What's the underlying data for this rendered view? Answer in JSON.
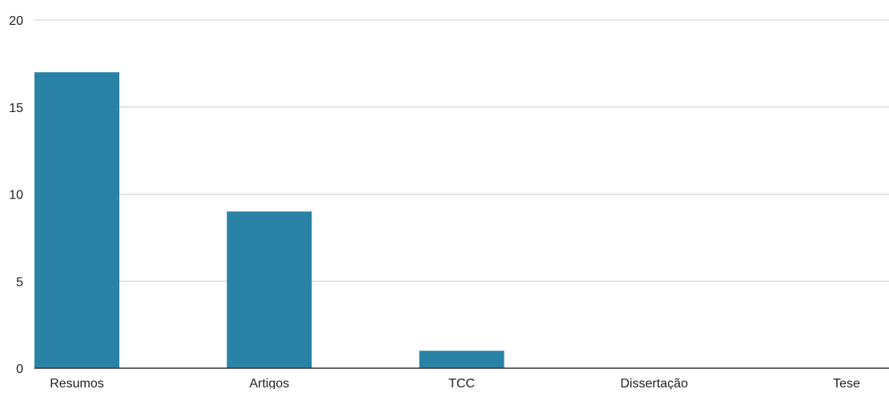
{
  "chart_data": {
    "type": "bar",
    "categories": [
      "Resumos",
      "Artigos",
      "TCC",
      "Dissertação",
      "Tese"
    ],
    "values": [
      17,
      9,
      1,
      0,
      0
    ],
    "title": "",
    "xlabel": "",
    "ylabel": "",
    "ylim": [
      0,
      20
    ],
    "yticks": [
      "0",
      "5",
      "10",
      "15",
      "20"
    ],
    "grid": true,
    "legend": "none",
    "colors": {
      "bar": "#2a82a6",
      "grid": "#cccccc",
      "axis": "#333333",
      "text": "#222222"
    }
  }
}
